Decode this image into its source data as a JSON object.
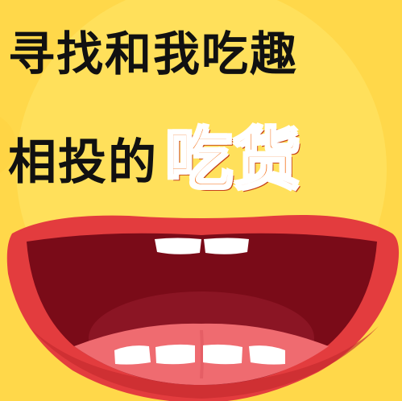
{
  "headline": {
    "line1": "寻找和我吃趣",
    "line2_prefix": "相投的",
    "line2_accent": "吃货"
  },
  "colors": {
    "background": "#ffd84a",
    "face_outer": "#ffe86a",
    "lip": "#e33c3e",
    "lip_shadow": "#c42a2e",
    "mouth_dark": "#7a0b18",
    "tongue": "#ef6b70",
    "teeth": "#ffffff",
    "accent_text": "#f57b2a"
  }
}
